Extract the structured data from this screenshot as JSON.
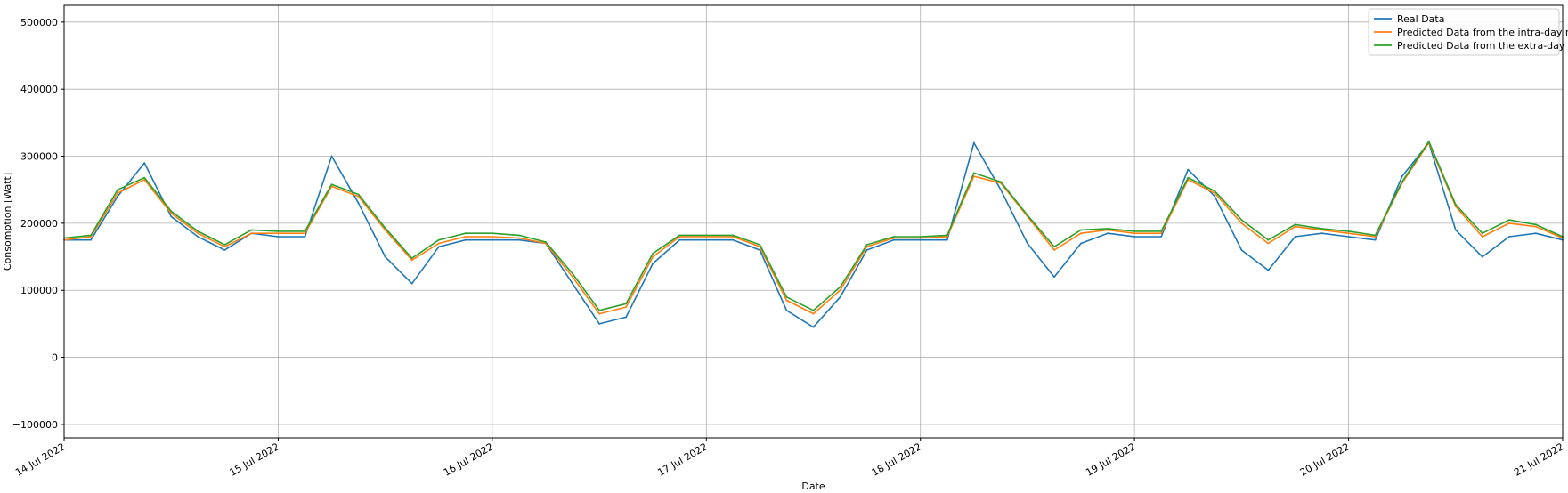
{
  "chart_data": {
    "type": "line",
    "title": "",
    "xlabel": "Date",
    "ylabel": "Consomption [Watt]",
    "xlim": [
      "2022-07-14",
      "2022-07-21"
    ],
    "ylim": [
      -120000,
      525000
    ],
    "grid": true,
    "legend_position": "top-right",
    "x_tick_labels": [
      "14 Jul 2022",
      "15 Jul 2022",
      "16 Jul 2022",
      "17 Jul 2022",
      "18 Jul 2022",
      "19 Jul 2022",
      "20 Jul 2022",
      "21 Jul 2022"
    ],
    "y_ticks": [
      -100000,
      0,
      100000,
      200000,
      300000,
      400000,
      500000
    ],
    "y_tick_labels": [
      "−100000",
      "0",
      "100000",
      "200000",
      "300000",
      "400000",
      "500000"
    ],
    "x": [
      "2022-07-14 00:00",
      "2022-07-14 03:00",
      "2022-07-14 06:00",
      "2022-07-14 09:00",
      "2022-07-14 12:00",
      "2022-07-14 15:00",
      "2022-07-14 18:00",
      "2022-07-14 21:00",
      "2022-07-15 00:00",
      "2022-07-15 03:00",
      "2022-07-15 06:00",
      "2022-07-15 09:00",
      "2022-07-15 12:00",
      "2022-07-15 15:00",
      "2022-07-15 18:00",
      "2022-07-15 21:00",
      "2022-07-16 00:00",
      "2022-07-16 03:00",
      "2022-07-16 06:00",
      "2022-07-16 09:00",
      "2022-07-16 12:00",
      "2022-07-16 15:00",
      "2022-07-16 18:00",
      "2022-07-16 21:00",
      "2022-07-17 00:00",
      "2022-07-17 03:00",
      "2022-07-17 06:00",
      "2022-07-17 09:00",
      "2022-07-17 12:00",
      "2022-07-17 15:00",
      "2022-07-17 18:00",
      "2022-07-17 21:00",
      "2022-07-18 00:00",
      "2022-07-18 03:00",
      "2022-07-18 06:00",
      "2022-07-18 09:00",
      "2022-07-18 12:00",
      "2022-07-18 15:00",
      "2022-07-18 18:00",
      "2022-07-18 21:00",
      "2022-07-19 00:00",
      "2022-07-19 03:00",
      "2022-07-19 06:00",
      "2022-07-19 09:00",
      "2022-07-19 12:00",
      "2022-07-19 15:00",
      "2022-07-19 18:00",
      "2022-07-19 21:00",
      "2022-07-20 00:00",
      "2022-07-20 03:00",
      "2022-07-20 06:00",
      "2022-07-20 09:00",
      "2022-07-20 12:00",
      "2022-07-20 15:00",
      "2022-07-20 18:00",
      "2022-07-20 21:00",
      "2022-07-21 00:00"
    ],
    "series": [
      {
        "name": "Real Data",
        "color": "#1f77b4",
        "values": [
          175000,
          175000,
          240000,
          290000,
          210000,
          180000,
          160000,
          185000,
          180000,
          180000,
          300000,
          230000,
          150000,
          110000,
          165000,
          175000,
          175000,
          175000,
          170000,
          110000,
          50000,
          60000,
          140000,
          175000,
          175000,
          175000,
          160000,
          70000,
          45000,
          90000,
          160000,
          175000,
          175000,
          175000,
          320000,
          250000,
          170000,
          120000,
          170000,
          185000,
          180000,
          180000,
          280000,
          240000,
          160000,
          130000,
          180000,
          185000,
          180000,
          175000,
          270000,
          320000,
          190000,
          150000,
          180000,
          185000,
          175000
        ]
      },
      {
        "name": "Predicted Data from the intra-day model",
        "color": "#ff7f0e",
        "values": [
          175000,
          180000,
          245000,
          265000,
          215000,
          185000,
          165000,
          185000,
          185000,
          185000,
          255000,
          240000,
          190000,
          145000,
          170000,
          180000,
          180000,
          178000,
          170000,
          120000,
          65000,
          75000,
          150000,
          180000,
          180000,
          180000,
          165000,
          85000,
          65000,
          100000,
          165000,
          178000,
          178000,
          180000,
          270000,
          260000,
          210000,
          160000,
          185000,
          190000,
          185000,
          185000,
          265000,
          245000,
          200000,
          170000,
          195000,
          190000,
          185000,
          180000,
          260000,
          320000,
          225000,
          180000,
          200000,
          195000,
          178000
        ]
      },
      {
        "name": "Predicted Data from the extra-day model",
        "color": "#2ca02c",
        "values": [
          178000,
          182000,
          250000,
          268000,
          218000,
          188000,
          168000,
          190000,
          188000,
          188000,
          258000,
          243000,
          193000,
          148000,
          175000,
          185000,
          185000,
          182000,
          172000,
          125000,
          70000,
          80000,
          155000,
          182000,
          182000,
          182000,
          168000,
          90000,
          70000,
          105000,
          168000,
          180000,
          180000,
          182000,
          275000,
          262000,
          212000,
          165000,
          190000,
          192000,
          188000,
          188000,
          268000,
          248000,
          205000,
          175000,
          198000,
          192000,
          188000,
          182000,
          262000,
          322000,
          228000,
          185000,
          205000,
          198000,
          180000
        ]
      }
    ]
  }
}
